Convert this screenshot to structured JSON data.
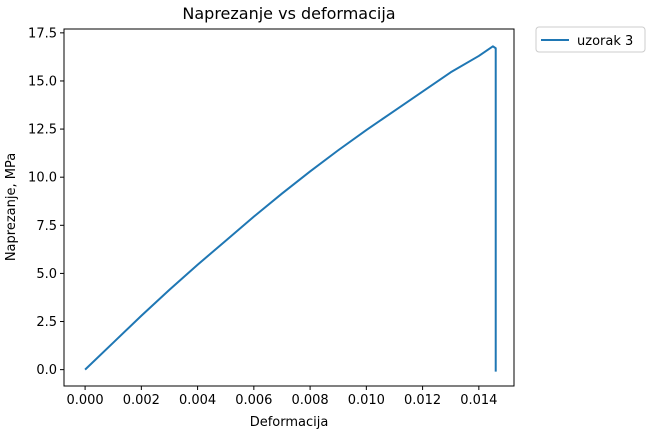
{
  "chart_data": {
    "type": "line",
    "title": "Naprezanje vs deformacija",
    "xlabel": "Deformacija",
    "ylabel": "Naprezanje, MPa",
    "xlim": [
      -0.00075,
      0.01525
    ],
    "ylim": [
      -0.85,
      17.7
    ],
    "x_ticks": [
      0.0,
      0.002,
      0.004,
      0.006,
      0.008,
      0.01,
      0.012,
      0.014
    ],
    "x_tick_labels": [
      "0.000",
      "0.002",
      "0.004",
      "0.006",
      "0.008",
      "0.010",
      "0.012",
      "0.014"
    ],
    "y_ticks": [
      0.0,
      2.5,
      5.0,
      7.5,
      10.0,
      12.5,
      15.0,
      17.5
    ],
    "y_tick_labels": [
      "0.0",
      "2.5",
      "5.0",
      "7.5",
      "10.0",
      "12.5",
      "15.0",
      "17.5"
    ],
    "grid": false,
    "legend_position": "outside-top-right",
    "series": [
      {
        "name": "uzorak 3",
        "color": "#1f77b4",
        "x": [
          0.0,
          0.001,
          0.002,
          0.003,
          0.004,
          0.005,
          0.006,
          0.007,
          0.008,
          0.009,
          0.01,
          0.011,
          0.012,
          0.013,
          0.014,
          0.0145,
          0.0146,
          0.0146
        ],
        "y": [
          0.0,
          1.4,
          2.8,
          4.15,
          5.45,
          6.7,
          7.95,
          9.15,
          10.3,
          11.4,
          12.45,
          13.45,
          14.45,
          15.45,
          16.3,
          16.8,
          16.7,
          -0.1
        ]
      }
    ]
  }
}
